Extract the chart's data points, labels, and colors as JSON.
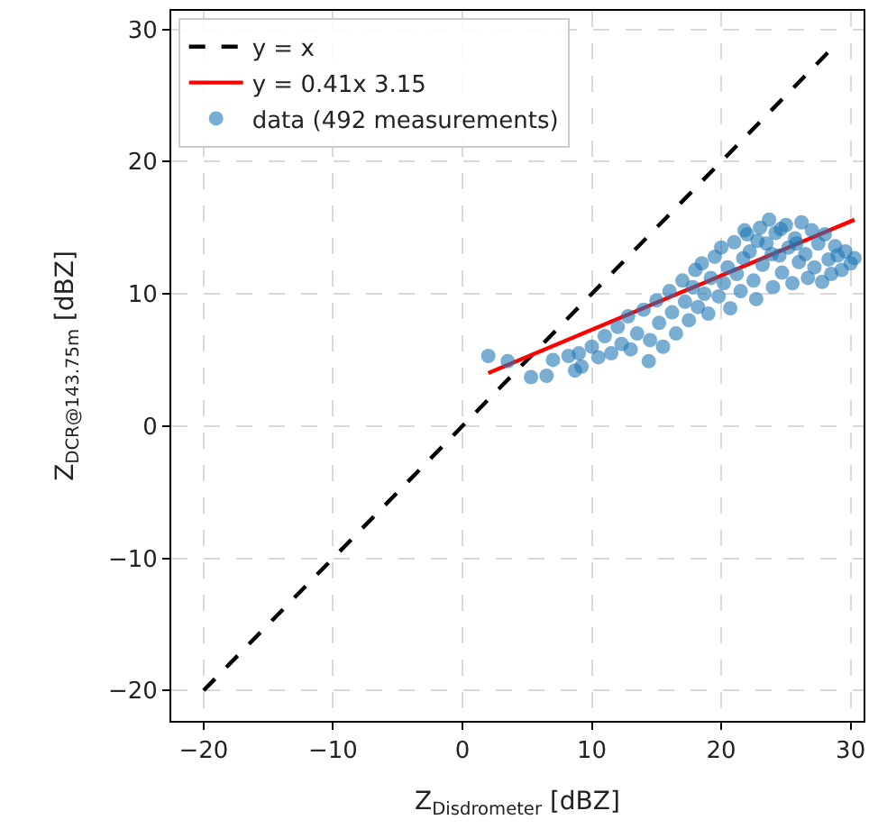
{
  "chart_data": {
    "type": "scatter",
    "xlabel": "Z$_{Disdrometer}$ [dBZ]",
    "ylabel": "Z$_{DCR@143.75m}$ [dBZ]",
    "xlim": [
      -22.5,
      31
    ],
    "ylim": [
      -22.3,
      31.4
    ],
    "xticks": [
      {
        "value": -20,
        "label": "−20"
      },
      {
        "value": -10,
        "label": "−10"
      },
      0,
      10,
      20,
      30
    ],
    "yticks": [
      {
        "value": -20,
        "label": "−20"
      },
      {
        "value": -10,
        "label": "−10"
      },
      0,
      10,
      20,
      30
    ],
    "grid": true,
    "legend": "top left",
    "series": [
      {
        "name": "y = x",
        "type": "line",
        "color": "#000000",
        "line_style": "dashed",
        "marker": "none",
        "x": [
          -20,
          28.5
        ],
        "values": [
          -20,
          28.5
        ]
      },
      {
        "name": "y = 0.41x 3.15",
        "type": "line",
        "color": "#ff0000",
        "line_style": "solid",
        "marker": "none",
        "x": [
          2,
          30.3
        ],
        "values": [
          4.0,
          15.6
        ]
      },
      {
        "name": "data (492 measurements)",
        "color": "#1f77b4",
        "marker": "circle",
        "x": [
          2.0,
          3.5,
          5.3,
          6.5,
          7.0,
          8.2,
          8.7,
          9.2,
          9.0,
          10.0,
          10.5,
          11.0,
          11.5,
          12.0,
          12.3,
          12.8,
          13.0,
          13.5,
          14.0,
          14.4,
          14.5,
          15.0,
          15.2,
          15.5,
          16.0,
          16.2,
          16.5,
          17.0,
          17.2,
          17.5,
          17.8,
          18.0,
          18.2,
          18.5,
          18.7,
          19.0,
          19.2,
          19.5,
          19.8,
          20.0,
          20.2,
          20.5,
          20.7,
          21.0,
          21.2,
          21.5,
          21.7,
          22.0,
          22.2,
          22.5,
          22.7,
          23.0,
          23.2,
          23.5,
          23.7,
          24.0,
          24.2,
          24.5,
          24.7,
          25.0,
          25.2,
          25.5,
          25.7,
          26.0,
          26.2,
          26.5,
          26.7,
          27.0,
          27.2,
          27.5,
          27.8,
          28.0,
          28.3,
          28.5,
          28.8,
          29.0,
          29.3,
          29.6,
          30.0,
          30.3,
          22.8,
          21.8,
          23.9,
          25.8,
          24.6
        ],
        "values": [
          5.3,
          4.9,
          3.7,
          3.8,
          5.0,
          5.3,
          4.2,
          4.5,
          5.5,
          6.0,
          5.2,
          6.8,
          5.5,
          7.5,
          6.2,
          8.3,
          5.8,
          7.0,
          8.8,
          4.9,
          6.5,
          9.5,
          7.8,
          6.0,
          10.2,
          8.6,
          7.0,
          11.0,
          9.4,
          8.0,
          10.5,
          11.8,
          9.0,
          12.3,
          10.0,
          8.5,
          11.2,
          12.8,
          9.8,
          13.5,
          10.8,
          12.0,
          8.9,
          13.9,
          11.5,
          10.2,
          12.7,
          14.5,
          13.2,
          11.0,
          9.6,
          15.0,
          12.2,
          13.8,
          15.6,
          10.5,
          14.6,
          12.9,
          11.6,
          15.2,
          13.5,
          10.8,
          14.2,
          12.4,
          15.4,
          13.0,
          11.2,
          14.8,
          12.0,
          13.8,
          10.9,
          14.5,
          12.6,
          11.5,
          13.6,
          12.9,
          11.8,
          13.2,
          12.3,
          12.7,
          14.0,
          14.8,
          13.0,
          13.8,
          14.9
        ]
      }
    ]
  }
}
